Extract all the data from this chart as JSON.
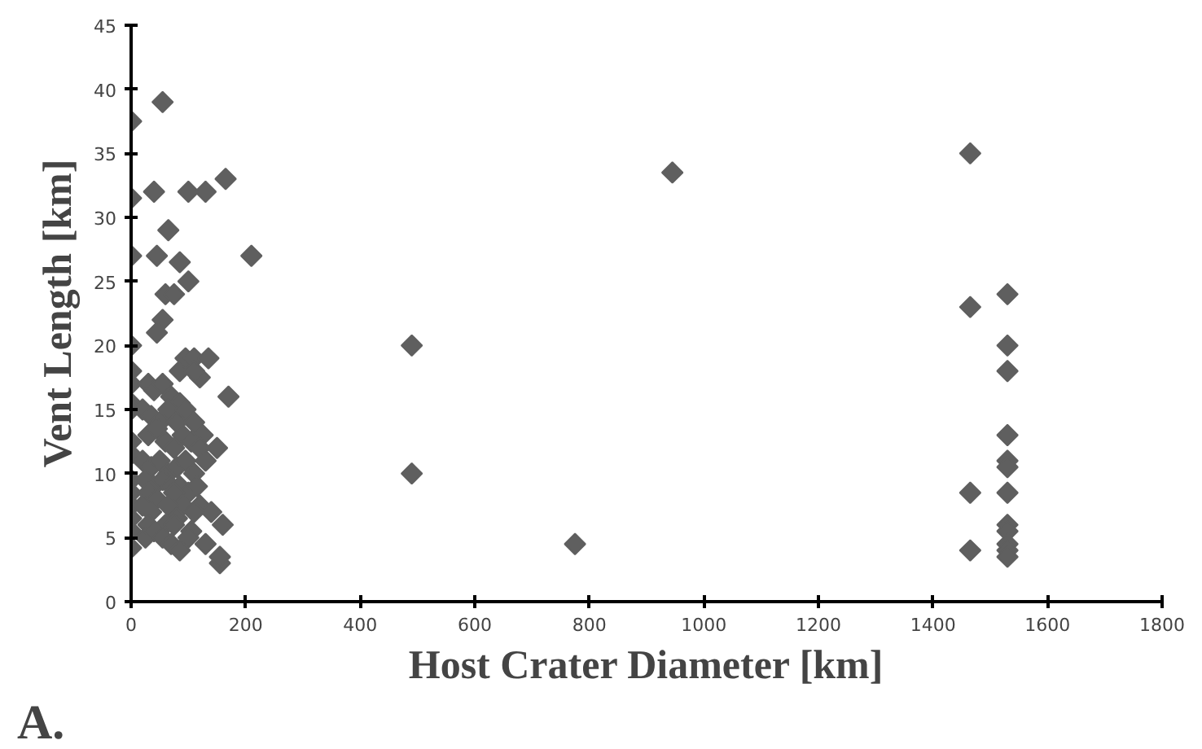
{
  "chart_data": {
    "type": "scatter",
    "xlabel": "Host Crater Diameter [km]",
    "ylabel": "Vent Length [km]",
    "annotations": [
      "A."
    ],
    "xlim": [
      0,
      1800
    ],
    "ylim": [
      0,
      45
    ],
    "xticks": [
      0,
      200,
      400,
      600,
      800,
      1000,
      1200,
      1400,
      1600,
      1800
    ],
    "yticks": [
      0,
      5,
      10,
      15,
      20,
      25,
      30,
      35,
      40,
      45
    ],
    "marker": "diamond",
    "grid": false,
    "series": [
      {
        "color": "#5f5f5f",
        "x": [
          0,
          0,
          0,
          0,
          0,
          0,
          0,
          0,
          0,
          0,
          0,
          0,
          0,
          0,
          0,
          0,
          55,
          40,
          100,
          130,
          165,
          210,
          45,
          65,
          85,
          100,
          60,
          75,
          55,
          45,
          85,
          95,
          110,
          135,
          120,
          110,
          170,
          150,
          160,
          155,
          155,
          30,
          40,
          55,
          70,
          85,
          20,
          35,
          50,
          65,
          80,
          95,
          110,
          125,
          30,
          45,
          60,
          75,
          90,
          105,
          120,
          20,
          35,
          50,
          65,
          80,
          95,
          110,
          130,
          25,
          40,
          55,
          70,
          85,
          100,
          115,
          30,
          45,
          75,
          90,
          120,
          140,
          20,
          35,
          65,
          80,
          110,
          30,
          60,
          75,
          105,
          25,
          40,
          55,
          70,
          85,
          100,
          130,
          490,
          490,
          775,
          945,
          1465,
          1465,
          1465,
          1465,
          1530,
          1530,
          1530,
          1530,
          1530,
          1530,
          1530,
          1530,
          1530,
          1530,
          1530,
          1530
        ],
        "values": [
          37.5,
          31.5,
          27,
          20,
          18,
          17,
          15.5,
          15,
          12.5,
          11.5,
          9.5,
          8.5,
          7.5,
          6.5,
          5.5,
          4.2,
          39,
          32,
          32,
          32,
          33,
          27,
          27,
          29,
          26.5,
          25,
          24,
          24,
          22,
          21,
          18,
          19,
          19,
          19,
          17.5,
          18,
          16,
          12,
          6,
          3,
          3.5,
          17,
          16.5,
          17,
          16,
          15.5,
          15,
          14.5,
          14,
          15,
          14,
          15,
          14,
          13,
          13,
          13.5,
          12.5,
          12,
          13,
          12.5,
          12,
          11,
          10.5,
          11,
          10,
          10.5,
          11,
          10,
          11,
          9.5,
          9,
          9.5,
          9,
          9,
          8.5,
          9,
          8.5,
          8,
          8.5,
          7.5,
          7.5,
          7,
          7.5,
          7,
          7.5,
          6.5,
          7,
          6,
          6,
          6,
          5.5,
          5,
          5.5,
          5,
          4.5,
          4,
          5,
          4.5,
          20,
          10,
          4.5,
          33.5,
          35,
          23,
          8.5,
          4,
          24,
          20,
          18,
          13,
          11,
          10.5,
          8.5,
          6,
          5.5,
          4.5,
          4,
          3.5
        ]
      }
    ]
  }
}
